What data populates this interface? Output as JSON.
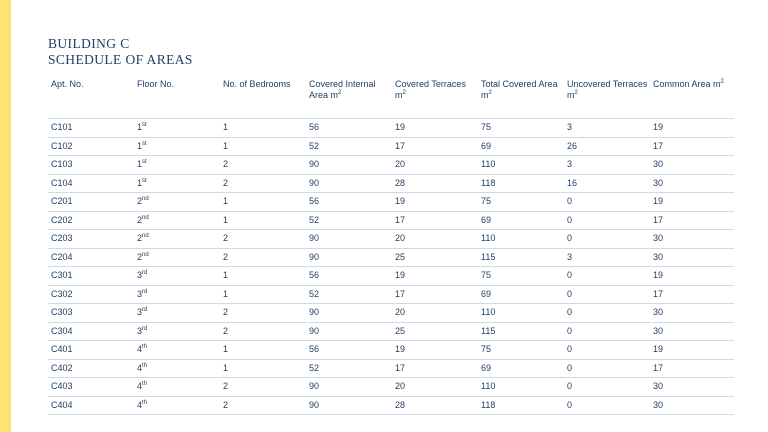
{
  "title": {
    "line1": "BUILDING C",
    "line2": "SCHEDULE OF AREAS"
  },
  "colors": {
    "accent": "#ffe36e",
    "text": "#1f3f66",
    "rule": "#d3d9e0"
  },
  "columns": [
    {
      "label": "Apt. No.",
      "unit": ""
    },
    {
      "label": "Floor No.",
      "unit": ""
    },
    {
      "label": "No. of Bedrooms",
      "unit": ""
    },
    {
      "label": "Covered Internal Area m",
      "unit": "2"
    },
    {
      "label": "Covered Terraces m",
      "unit": "2"
    },
    {
      "label": "Total Covered Area m",
      "unit": "2"
    },
    {
      "label": "Uncovered Terraces m",
      "unit": "2"
    },
    {
      "label": "Common Area m",
      "unit": "2"
    }
  ],
  "rows": [
    {
      "apt": "C101",
      "floor": "1",
      "floor_suffix": "st",
      "bedrooms": "1",
      "covered_internal": "56",
      "covered_terraces": "19",
      "total_covered": "75",
      "uncovered_terraces": "3",
      "common_area": "19"
    },
    {
      "apt": "C102",
      "floor": "1",
      "floor_suffix": "st",
      "bedrooms": "1",
      "covered_internal": "52",
      "covered_terraces": "17",
      "total_covered": "69",
      "uncovered_terraces": "26",
      "common_area": "17"
    },
    {
      "apt": "C103",
      "floor": "1",
      "floor_suffix": "st",
      "bedrooms": "2",
      "covered_internal": "90",
      "covered_terraces": "20",
      "total_covered": "110",
      "uncovered_terraces": "3",
      "common_area": "30"
    },
    {
      "apt": "C104",
      "floor": "1",
      "floor_suffix": "st",
      "bedrooms": "2",
      "covered_internal": "90",
      "covered_terraces": "28",
      "total_covered": "118",
      "uncovered_terraces": "16",
      "common_area": "30"
    },
    {
      "apt": "C201",
      "floor": "2",
      "floor_suffix": "nd",
      "bedrooms": "1",
      "covered_internal": "56",
      "covered_terraces": "19",
      "total_covered": "75",
      "uncovered_terraces": "0",
      "common_area": "19"
    },
    {
      "apt": "C202",
      "floor": "2",
      "floor_suffix": "nd",
      "bedrooms": "1",
      "covered_internal": "52",
      "covered_terraces": "17",
      "total_covered": "69",
      "uncovered_terraces": "0",
      "common_area": "17"
    },
    {
      "apt": "C203",
      "floor": "2",
      "floor_suffix": "nd",
      "bedrooms": "2",
      "covered_internal": "90",
      "covered_terraces": "20",
      "total_covered": "110",
      "uncovered_terraces": "0",
      "common_area": "30"
    },
    {
      "apt": "C204",
      "floor": "2",
      "floor_suffix": "nd",
      "bedrooms": "2",
      "covered_internal": "90",
      "covered_terraces": "25",
      "total_covered": "115",
      "uncovered_terraces": "3",
      "common_area": "30"
    },
    {
      "apt": "C301",
      "floor": "3",
      "floor_suffix": "rd",
      "bedrooms": "1",
      "covered_internal": "56",
      "covered_terraces": "19",
      "total_covered": "75",
      "uncovered_terraces": "0",
      "common_area": "19"
    },
    {
      "apt": "C302",
      "floor": "3",
      "floor_suffix": "rd",
      "bedrooms": "1",
      "covered_internal": "52",
      "covered_terraces": "17",
      "total_covered": "69",
      "uncovered_terraces": "0",
      "common_area": "17"
    },
    {
      "apt": "C303",
      "floor": "3",
      "floor_suffix": "rd",
      "bedrooms": "2",
      "covered_internal": "90",
      "covered_terraces": "20",
      "total_covered": "110",
      "uncovered_terraces": "0",
      "common_area": "30"
    },
    {
      "apt": "C304",
      "floor": "3",
      "floor_suffix": "rd",
      "bedrooms": "2",
      "covered_internal": "90",
      "covered_terraces": "25",
      "total_covered": "115",
      "uncovered_terraces": "0",
      "common_area": "30"
    },
    {
      "apt": "C401",
      "floor": "4",
      "floor_suffix": "th",
      "bedrooms": "1",
      "covered_internal": "56",
      "covered_terraces": "19",
      "total_covered": "75",
      "uncovered_terraces": "0",
      "common_area": "19"
    },
    {
      "apt": "C402",
      "floor": "4",
      "floor_suffix": "th",
      "bedrooms": "1",
      "covered_internal": "52",
      "covered_terraces": "17",
      "total_covered": "69",
      "uncovered_terraces": "0",
      "common_area": "17"
    },
    {
      "apt": "C403",
      "floor": "4",
      "floor_suffix": "th",
      "bedrooms": "2",
      "covered_internal": "90",
      "covered_terraces": "20",
      "total_covered": "110",
      "uncovered_terraces": "0",
      "common_area": "30"
    },
    {
      "apt": "C404",
      "floor": "4",
      "floor_suffix": "th",
      "bedrooms": "2",
      "covered_internal": "90",
      "covered_terraces": "28",
      "total_covered": "118",
      "uncovered_terraces": "0",
      "common_area": "30"
    }
  ]
}
